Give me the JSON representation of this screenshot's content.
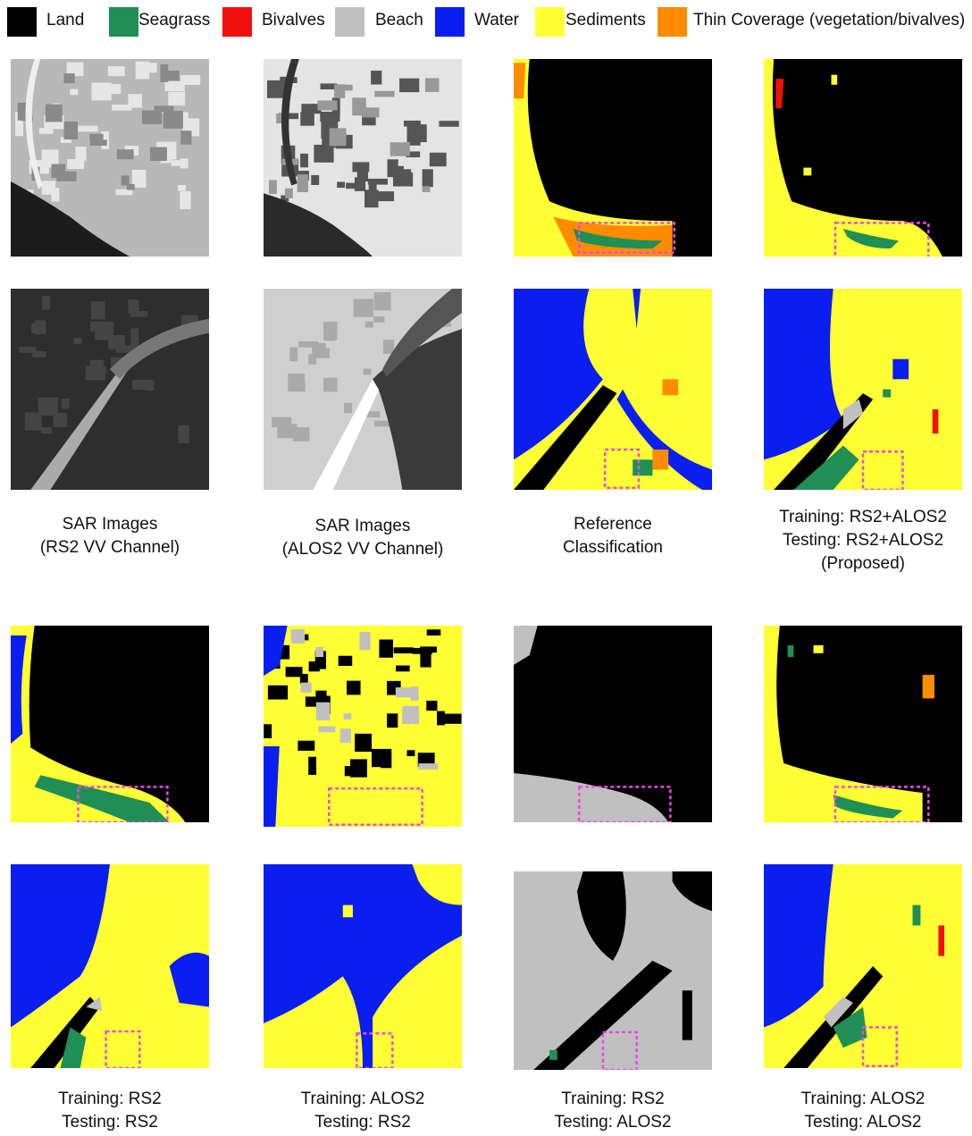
{
  "legend": [
    {
      "label": "Land",
      "color": "#000000"
    },
    {
      "label": "Seagrass",
      "color": "#1f8f55"
    },
    {
      "label": "Bivalves",
      "color": "#f01010"
    },
    {
      "label": "Beach",
      "color": "#c0c0c0"
    },
    {
      "label": "Water",
      "color": "#0a1ef0"
    },
    {
      "label": "Sediments",
      "color": "#ffff33"
    },
    {
      "label": "Thin Coverage (vegetation/bivalves)",
      "color": "#ff8c00"
    }
  ],
  "captions_top": [
    [
      "SAR Images",
      "(RS2 VV Channel)"
    ],
    [
      "SAR Images",
      "(ALOS2 VV Channel)"
    ],
    [
      "Reference",
      "Classification"
    ],
    [
      "Training: RS2+ALOS2",
      "Testing: RS2+ALOS2",
      "(Proposed)"
    ]
  ],
  "captions_bottom": [
    [
      "Training: RS2",
      "Testing: RS2"
    ],
    [
      "Training: ALOS2",
      "Testing: RS2"
    ],
    [
      "Training: RS2",
      "Testing: ALOS2"
    ],
    [
      "Training: ALOS2",
      "Testing: ALOS2"
    ]
  ]
}
